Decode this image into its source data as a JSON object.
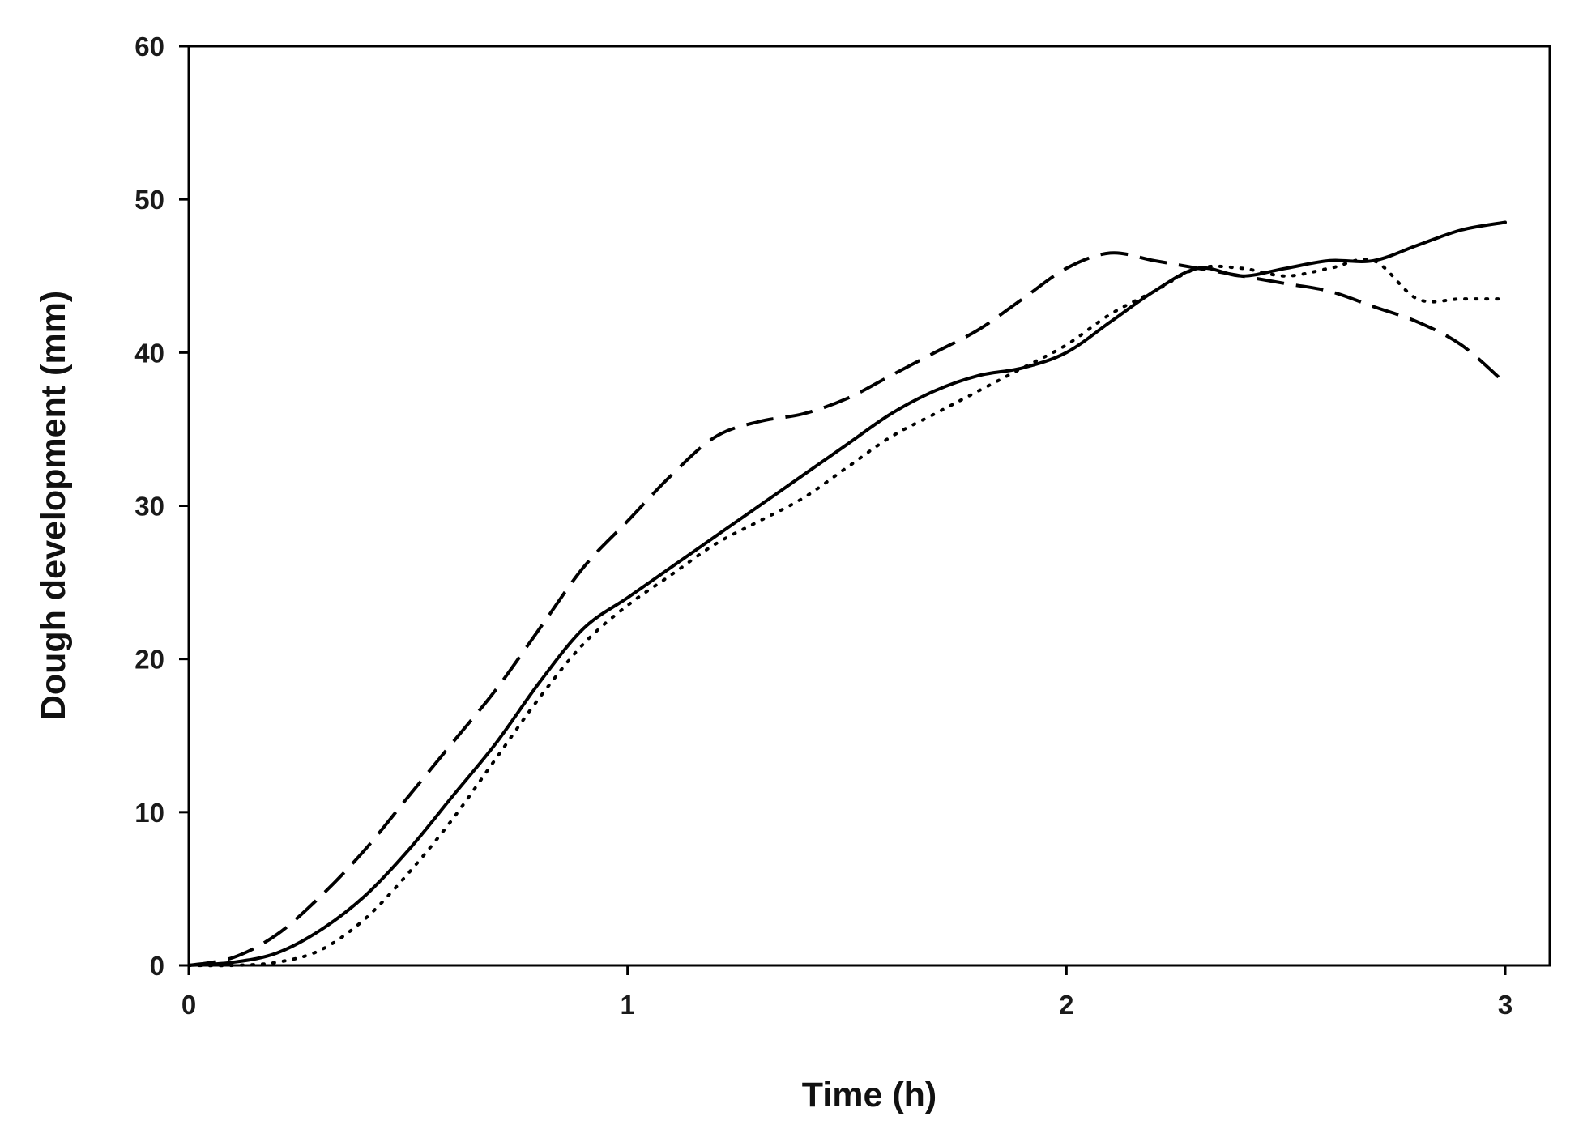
{
  "chart_data": {
    "type": "line",
    "title": "",
    "xlabel": "Time (h)",
    "ylabel": "Dough development (mm)",
    "xlim": [
      0,
      3
    ],
    "ylim": [
      0,
      60
    ],
    "xticks": [
      0,
      1,
      2,
      3
    ],
    "yticks": [
      0,
      10,
      20,
      30,
      40,
      50,
      60
    ],
    "grid": false,
    "legend": "none",
    "series": [
      {
        "line_style": "solid",
        "color": "#000000",
        "x": [
          0,
          0.1,
          0.2,
          0.3,
          0.4,
          0.5,
          0.6,
          0.7,
          0.8,
          0.9,
          1.0,
          1.1,
          1.2,
          1.3,
          1.4,
          1.5,
          1.6,
          1.7,
          1.8,
          1.9,
          2.0,
          2.1,
          2.2,
          2.3,
          2.4,
          2.5,
          2.6,
          2.7,
          2.8,
          2.9,
          3.0
        ],
        "y": [
          0,
          0.2,
          0.8,
          2.3,
          4.5,
          7.5,
          11.0,
          14.5,
          18.5,
          22.0,
          24.0,
          26.0,
          28.0,
          30.0,
          32.0,
          34.0,
          36.0,
          37.5,
          38.5,
          39.0,
          40.0,
          42.0,
          44.0,
          45.5,
          45.0,
          45.5,
          46.0,
          46.0,
          47.0,
          48.0,
          48.5
        ]
      },
      {
        "line_style": "dashed",
        "color": "#000000",
        "x": [
          0,
          0.1,
          0.2,
          0.3,
          0.4,
          0.5,
          0.6,
          0.7,
          0.8,
          0.9,
          1.0,
          1.1,
          1.2,
          1.3,
          1.4,
          1.5,
          1.6,
          1.7,
          1.8,
          1.9,
          2.0,
          2.1,
          2.2,
          2.3,
          2.4,
          2.5,
          2.6,
          2.7,
          2.8,
          2.9,
          3.0
        ],
        "y": [
          0,
          0.5,
          2.0,
          4.5,
          7.5,
          11.0,
          14.5,
          18.0,
          22.0,
          26.0,
          29.0,
          32.0,
          34.5,
          35.5,
          36.0,
          37.0,
          38.5,
          40.0,
          41.5,
          43.5,
          45.5,
          46.5,
          46.0,
          45.5,
          45.0,
          44.5,
          44.0,
          43.0,
          42.0,
          40.5,
          38.0
        ]
      },
      {
        "line_style": "dotted",
        "color": "#000000",
        "x": [
          0,
          0.1,
          0.2,
          0.3,
          0.4,
          0.5,
          0.6,
          0.7,
          0.8,
          0.9,
          1.0,
          1.1,
          1.2,
          1.3,
          1.4,
          1.5,
          1.6,
          1.7,
          1.8,
          1.9,
          2.0,
          2.1,
          2.2,
          2.3,
          2.4,
          2.5,
          2.6,
          2.7,
          2.8,
          2.9,
          3.0
        ],
        "y": [
          0,
          0,
          0.2,
          1.0,
          3.0,
          6.0,
          9.5,
          13.5,
          17.5,
          21.0,
          23.5,
          25.5,
          27.5,
          29.0,
          30.5,
          32.5,
          34.5,
          36.0,
          37.5,
          39.0,
          40.5,
          42.5,
          44.0,
          45.5,
          45.5,
          45.0,
          45.5,
          46.0,
          43.5,
          43.5,
          43.5
        ]
      }
    ]
  }
}
